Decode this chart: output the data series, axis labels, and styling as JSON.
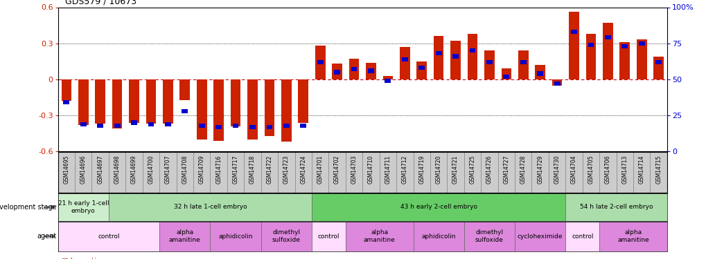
{
  "title": "GDS579 / 10673",
  "samples": [
    "GSM14695",
    "GSM14696",
    "GSM14697",
    "GSM14698",
    "GSM14699",
    "GSM14700",
    "GSM14707",
    "GSM14708",
    "GSM14709",
    "GSM14716",
    "GSM14717",
    "GSM14718",
    "GSM14722",
    "GSM14723",
    "GSM14724",
    "GSM14701",
    "GSM14702",
    "GSM14703",
    "GSM14710",
    "GSM14711",
    "GSM14712",
    "GSM14719",
    "GSM14720",
    "GSM14721",
    "GSM14725",
    "GSM14726",
    "GSM14727",
    "GSM14728",
    "GSM14729",
    "GSM14730",
    "GSM14704",
    "GSM14705",
    "GSM14706",
    "GSM14713",
    "GSM14714",
    "GSM14715"
  ],
  "log_ratio": [
    -0.18,
    -0.38,
    -0.37,
    -0.41,
    -0.36,
    -0.37,
    -0.37,
    -0.17,
    -0.5,
    -0.51,
    -0.39,
    -0.5,
    -0.47,
    -0.52,
    -0.36,
    0.28,
    0.13,
    0.17,
    0.14,
    0.03,
    0.27,
    0.15,
    0.36,
    0.32,
    0.38,
    0.24,
    0.09,
    0.24,
    0.12,
    -0.05,
    0.56,
    0.38,
    0.47,
    0.31,
    0.33,
    0.19
  ],
  "percentile": [
    34,
    19,
    18,
    18,
    20,
    19,
    19,
    28,
    18,
    17,
    18,
    17,
    17,
    18,
    18,
    62,
    55,
    57,
    56,
    49,
    64,
    58,
    68,
    66,
    70,
    62,
    52,
    62,
    54,
    47,
    83,
    74,
    79,
    73,
    75,
    62
  ],
  "bar_color": "#CC2200",
  "percentile_color": "#0000CC",
  "dev_stages": [
    {
      "label": "21 h early 1-cell\nembryo",
      "start": 0,
      "end": 3,
      "color": "#CCEECC"
    },
    {
      "label": "32 h late 1-cell embryo",
      "start": 3,
      "end": 15,
      "color": "#AADDAA"
    },
    {
      "label": "43 h early 2-cell embryo",
      "start": 15,
      "end": 30,
      "color": "#66CC66"
    },
    {
      "label": "54 h late 2-cell embryo",
      "start": 30,
      "end": 36,
      "color": "#AADDAA"
    }
  ],
  "agents": [
    {
      "label": "control",
      "start": 0,
      "end": 6,
      "color": "#FFDDFF"
    },
    {
      "label": "alpha\namanitine",
      "start": 6,
      "end": 9,
      "color": "#DD88DD"
    },
    {
      "label": "aphidicolin",
      "start": 9,
      "end": 12,
      "color": "#DD88DD"
    },
    {
      "label": "dimethyl\nsulfoxide",
      "start": 12,
      "end": 15,
      "color": "#DD88DD"
    },
    {
      "label": "control",
      "start": 15,
      "end": 17,
      "color": "#FFDDFF"
    },
    {
      "label": "alpha\namanitine",
      "start": 17,
      "end": 21,
      "color": "#DD88DD"
    },
    {
      "label": "aphidicolin",
      "start": 21,
      "end": 24,
      "color": "#DD88DD"
    },
    {
      "label": "dimethyl\nsulfoxide",
      "start": 24,
      "end": 27,
      "color": "#DD88DD"
    },
    {
      "label": "cycloheximide",
      "start": 27,
      "end": 30,
      "color": "#DD88DD"
    },
    {
      "label": "control",
      "start": 30,
      "end": 32,
      "color": "#FFDDFF"
    },
    {
      "label": "alpha\namanitine",
      "start": 32,
      "end": 36,
      "color": "#DD88DD"
    }
  ],
  "tick_bg_color": "#CCCCCC",
  "tick_border_color": "#888888"
}
